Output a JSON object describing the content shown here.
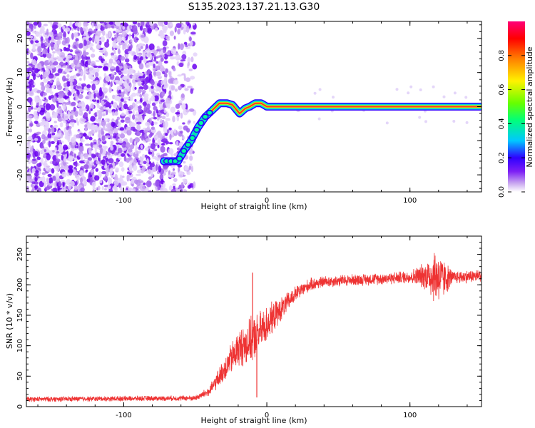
{
  "title": "S135.2023.137.21.13.G30",
  "chart_data": [
    {
      "type": "heatmap",
      "xlabel": "Height of straight line (km)",
      "ylabel": "Frequency (Hz)",
      "xlim": [
        -168,
        150
      ],
      "ylim": [
        -25,
        25
      ],
      "xticks": [
        -100,
        0,
        100
      ],
      "yticks": [
        -20,
        -10,
        0,
        10,
        20
      ],
      "colorbar": {
        "label": "Normalized spectral amplitude",
        "range": [
          0,
          1
        ],
        "ticks": [
          0.0,
          0.2,
          0.4,
          0.6,
          0.8
        ],
        "colors": [
          "#ffffff",
          "#c9a8f0",
          "#7d1ff5",
          "#2f00ff",
          "#00c8ff",
          "#00ff7a",
          "#66ff00",
          "#fff200",
          "#ff8000",
          "#ff0000",
          "#ff0078"
        ]
      },
      "ridge": {
        "x": [
          -72,
          -62,
          -58,
          -53,
          -48,
          -43,
          -38,
          -33,
          -28,
          -24,
          -21,
          -19,
          -15,
          -12,
          -8,
          -4,
          0,
          10,
          20,
          60,
          100,
          150
        ],
        "y": [
          -16,
          -16,
          -13,
          -10,
          -6,
          -3,
          -1,
          1,
          1,
          0.5,
          -1,
          -2,
          -0.5,
          0,
          1,
          1,
          0,
          0,
          0,
          0,
          0,
          0
        ]
      },
      "noise_region": [
        -168,
        -50
      ]
    },
    {
      "type": "line",
      "xlabel": "Height of straight line (km)",
      "ylabel": "SNR (10 * v/v)",
      "xlim": [
        -168,
        150
      ],
      "ylim": [
        0,
        280
      ],
      "xticks": [
        -100,
        0,
        100
      ],
      "yticks": [
        0,
        50,
        100,
        150,
        200,
        250
      ],
      "color": "#ee3333",
      "profile": {
        "x": [
          -168,
          -50,
          -40,
          -30,
          -20,
          -10,
          0,
          10,
          20,
          30,
          40,
          60,
          80,
          100,
          110,
          118,
          122,
          130,
          150
        ],
        "y": [
          12,
          14,
          25,
          60,
          95,
          110,
          135,
          160,
          185,
          200,
          205,
          208,
          210,
          213,
          215,
          215,
          210,
          212,
          215
        ],
        "noise": [
          4,
          4,
          8,
          18,
          30,
          35,
          28,
          18,
          12,
          10,
          9,
          9,
          9,
          10,
          20,
          45,
          35,
          10,
          10
        ]
      },
      "spike": {
        "x": -10,
        "y": 220
      },
      "dip": {
        "x": -7,
        "y": 15
      }
    }
  ]
}
